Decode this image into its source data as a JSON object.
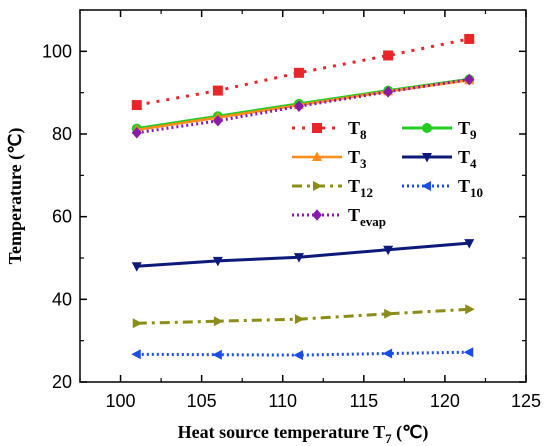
{
  "chart_data": {
    "type": "line",
    "xlabel": {
      "main": "Heat source temperature T",
      "sub": "7",
      "unit": " (℃)"
    },
    "ylabel": "Temperature (℃)",
    "xlim": [
      97.5,
      125
    ],
    "ylim": [
      20,
      110
    ],
    "x_ticks": [
      100,
      105,
      110,
      115,
      120,
      125
    ],
    "y_ticks": [
      20,
      40,
      60,
      80,
      100
    ],
    "x": [
      101,
      106,
      111,
      116.5,
      121.5
    ],
    "series": [
      {
        "key": "T8",
        "name": "T",
        "sub": "8",
        "color": "#e8262a",
        "marker": "square",
        "dash": "3,7",
        "width": 3,
        "values": [
          87,
          90.5,
          94.8,
          99,
          103
        ]
      },
      {
        "key": "T9",
        "name": "T",
        "sub": "9",
        "color": "#22cc22",
        "marker": "circle",
        "dash": "",
        "width": 3,
        "values": [
          81.3,
          84.3,
          87.3,
          90.5,
          93.2
        ]
      },
      {
        "key": "T3",
        "name": "T",
        "sub": "3",
        "color": "#ff8c1a",
        "marker": "triangle-up",
        "dash": "",
        "width": 2.5,
        "values": [
          81,
          84,
          87,
          90.3,
          93
        ]
      },
      {
        "key": "T4",
        "name": "T",
        "sub": "4",
        "color": "#0d1a7a",
        "marker": "triangle-down",
        "dash": "",
        "width": 3,
        "values": [
          48,
          49.3,
          50.2,
          52,
          53.6
        ]
      },
      {
        "key": "T12",
        "name": "T",
        "sub": "12",
        "color": "#8c8c1a",
        "marker": "triangle-right",
        "dash": "10,5,3,5",
        "width": 3,
        "values": [
          34.2,
          34.7,
          35.2,
          36.5,
          37.6
        ]
      },
      {
        "key": "T10",
        "name": "T",
        "sub": "10",
        "color": "#1a4de6",
        "marker": "triangle-left",
        "dash": "2,3",
        "width": 3,
        "values": [
          26.7,
          26.6,
          26.5,
          26.9,
          27.2
        ]
      },
      {
        "key": "Tevap",
        "name": "T",
        "sub": "evap",
        "color": "#8a1aa8",
        "marker": "diamond",
        "dash": "2,3",
        "width": 3,
        "values": [
          80.3,
          83.2,
          86.7,
          90.2,
          93.2
        ]
      }
    ],
    "legend": {
      "placement": "center-right",
      "columns": 2
    },
    "grid": false
  }
}
